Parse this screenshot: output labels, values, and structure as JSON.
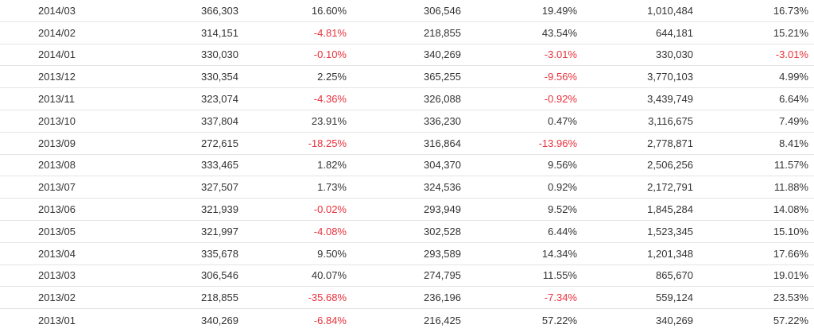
{
  "table": {
    "rows": [
      [
        "2014/03",
        "366,303",
        "16.60%",
        "306,546",
        "19.49%",
        "1,010,484",
        "16.73%"
      ],
      [
        "2014/02",
        "314,151",
        "-4.81%",
        "218,855",
        "43.54%",
        "644,181",
        "15.21%"
      ],
      [
        "2014/01",
        "330,030",
        "-0.10%",
        "340,269",
        "-3.01%",
        "330,030",
        "-3.01%"
      ],
      [
        "2013/12",
        "330,354",
        "2.25%",
        "365,255",
        "-9.56%",
        "3,770,103",
        "4.99%"
      ],
      [
        "2013/11",
        "323,074",
        "-4.36%",
        "326,088",
        "-0.92%",
        "3,439,749",
        "6.64%"
      ],
      [
        "2013/10",
        "337,804",
        "23.91%",
        "336,230",
        "0.47%",
        "3,116,675",
        "7.49%"
      ],
      [
        "2013/09",
        "272,615",
        "-18.25%",
        "316,864",
        "-13.96%",
        "2,778,871",
        "8.41%"
      ],
      [
        "2013/08",
        "333,465",
        "1.82%",
        "304,370",
        "9.56%",
        "2,506,256",
        "11.57%"
      ],
      [
        "2013/07",
        "327,507",
        "1.73%",
        "324,536",
        "0.92%",
        "2,172,791",
        "11.88%"
      ],
      [
        "2013/06",
        "321,939",
        "-0.02%",
        "293,949",
        "9.52%",
        "1,845,284",
        "14.08%"
      ],
      [
        "2013/05",
        "321,997",
        "-4.08%",
        "302,528",
        "6.44%",
        "1,523,345",
        "15.10%"
      ],
      [
        "2013/04",
        "335,678",
        "9.50%",
        "293,589",
        "14.34%",
        "1,201,348",
        "17.66%"
      ],
      [
        "2013/03",
        "306,546",
        "40.07%",
        "274,795",
        "11.55%",
        "865,670",
        "19.01%"
      ],
      [
        "2013/02",
        "218,855",
        "-35.68%",
        "236,196",
        "-7.34%",
        "559,124",
        "23.53%"
      ],
      [
        "2013/01",
        "340,269",
        "-6.84%",
        "216,425",
        "57.22%",
        "340,269",
        "57.22%"
      ]
    ]
  },
  "colors": {
    "negative": "#e8313b",
    "text": "#333333",
    "row_border": "#e4e4e4"
  }
}
